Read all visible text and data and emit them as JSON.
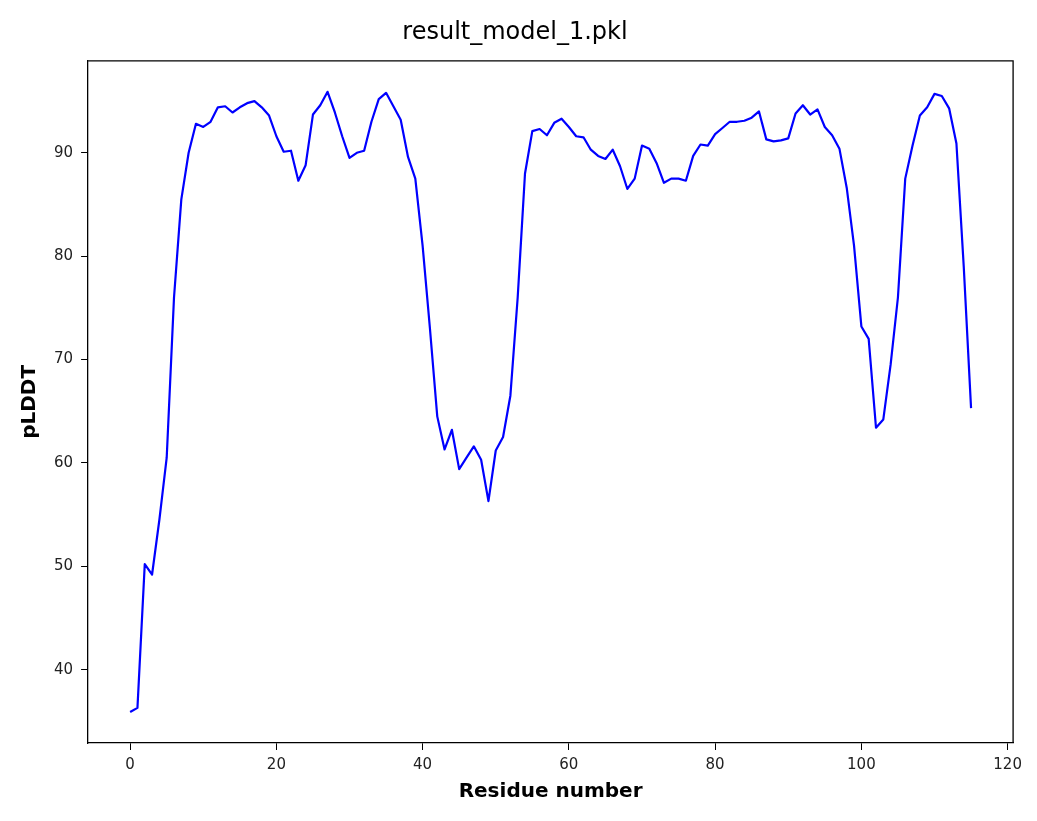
{
  "chart_data": {
    "type": "line",
    "title": "result_model_1.pkl",
    "xlabel": "Residue number",
    "ylabel": "pLDDT",
    "x": [
      0,
      1,
      2,
      3,
      4,
      5,
      6,
      7,
      8,
      9,
      10,
      11,
      12,
      13,
      14,
      15,
      16,
      17,
      18,
      19,
      20,
      21,
      22,
      23,
      24,
      25,
      26,
      27,
      28,
      29,
      30,
      31,
      32,
      33,
      34,
      35,
      36,
      37,
      38,
      39,
      40,
      41,
      42,
      43,
      44,
      45,
      46,
      47,
      48,
      49,
      50,
      51,
      52,
      53,
      54,
      55,
      56,
      57,
      58,
      59,
      60,
      61,
      62,
      63,
      64,
      65,
      66,
      67,
      68,
      69,
      70,
      71,
      72,
      73,
      74,
      75,
      76,
      77,
      78,
      79,
      80,
      81,
      82,
      83,
      84,
      85,
      86,
      87,
      88,
      89,
      90,
      91,
      92,
      93,
      94,
      95,
      96,
      97,
      98,
      99,
      100,
      101,
      102,
      103,
      104,
      105,
      106,
      107,
      108,
      109,
      110,
      111,
      112,
      113,
      114,
      115
    ],
    "series": [
      {
        "color": "#0000ff",
        "values": [
          35.9,
          36.3,
          50.2,
          49.2,
          54.5,
          60.5,
          76,
          85.5,
          90,
          92.8,
          92.5,
          93,
          94.4,
          94.5,
          93.9,
          94.4,
          94.8,
          95,
          94.4,
          93.6,
          91.6,
          90.1,
          90.2,
          87.3,
          88.8,
          93.7,
          94.6,
          95.9,
          93.9,
          91.6,
          89.5,
          90,
          90.2,
          93,
          95.2,
          95.8,
          94.5,
          93.2,
          89.6,
          87.5,
          81,
          73,
          64.5,
          61.3,
          63.2,
          59.4,
          60.5,
          61.6,
          60.3,
          56.3,
          61.2,
          62.5,
          66.5,
          76,
          88,
          92.1,
          92.3,
          91.7,
          92.9,
          93.3,
          92.5,
          91.6,
          91.5,
          90.3,
          89.7,
          89.4,
          90.3,
          88.7,
          86.5,
          87.5,
          90.7,
          90.4,
          89,
          87.1,
          87.5,
          87.5,
          87.3,
          89.7,
          90.8,
          90.7,
          91.8,
          92.4,
          93,
          93,
          93.1,
          93.4,
          94,
          91.3,
          91.1,
          91.2,
          91.4,
          93.8,
          94.6,
          93.7,
          94.2,
          92.5,
          91.7,
          90.4,
          86.6,
          81,
          73.2,
          72,
          63.4,
          64.2,
          69.5,
          76,
          87.5,
          90.7,
          93.6,
          94.4,
          95.7,
          95.5,
          94.3,
          90.9,
          79,
          65.3
        ]
      }
    ],
    "xlim": [
      -5.75,
      120.75
    ],
    "ylim": [
      32.9,
      98.9
    ],
    "xticks": [
      0,
      20,
      40,
      60,
      80,
      100,
      120
    ],
    "yticks": [
      40,
      50,
      60,
      70,
      80,
      90
    ],
    "grid": false,
    "legend": false,
    "marker": "none",
    "line_style": "solid"
  }
}
